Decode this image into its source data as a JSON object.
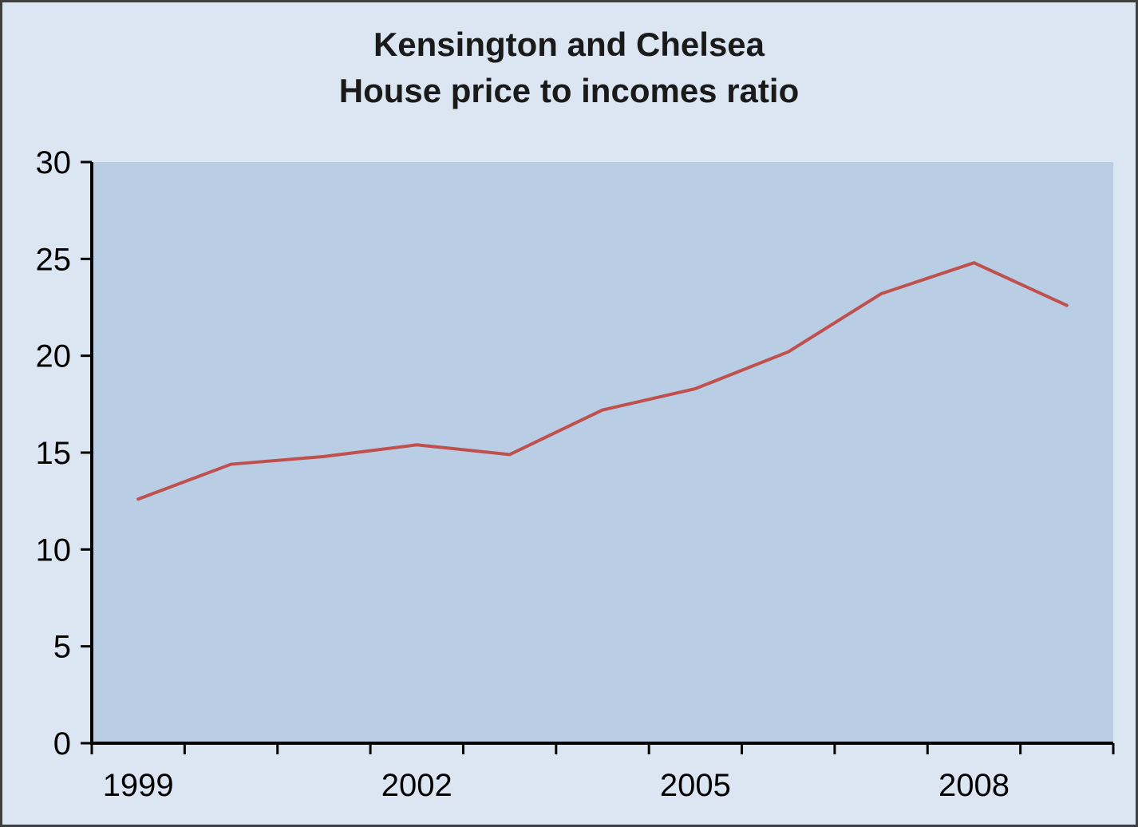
{
  "chart_data": {
    "type": "line",
    "title_lines": [
      "Kensington and Chelsea",
      "House price to incomes ratio"
    ],
    "x": [
      1999,
      2000,
      2001,
      2002,
      2003,
      2004,
      2005,
      2006,
      2007,
      2008,
      2009
    ],
    "values": [
      12.6,
      14.4,
      14.8,
      15.4,
      14.9,
      17.2,
      18.3,
      20.2,
      23.2,
      24.8,
      22.6
    ],
    "ylim": [
      0,
      30
    ],
    "y_ticks": [
      0,
      5,
      10,
      15,
      20,
      25,
      30
    ],
    "x_label_years": [
      1999,
      2002,
      2005,
      2008
    ],
    "xlabel": "",
    "ylabel": "",
    "legend_position": "none",
    "grid": false,
    "colors": {
      "series_line": "#c0504d",
      "plot_background": "#b9cde4",
      "outer_background": "#dce6f2",
      "axis": "#000000",
      "tick_label": "#000000",
      "title_text": "#1a1a1a",
      "frame_border": "#3f3f3f"
    }
  }
}
